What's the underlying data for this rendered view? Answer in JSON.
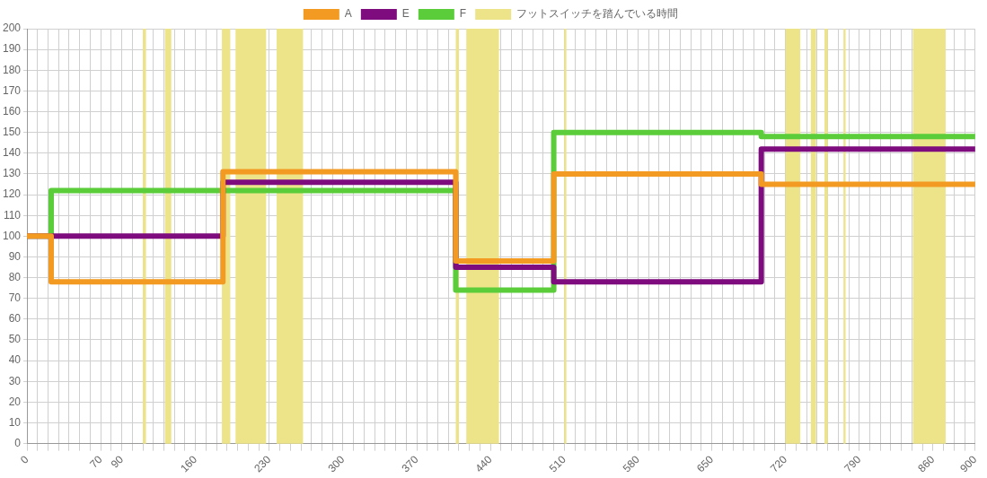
{
  "chart_data": {
    "type": "step",
    "legend": "top",
    "grid": true,
    "marker": "none",
    "line_style": "solid",
    "xlim": [
      0,
      900
    ],
    "ylim": [
      0,
      200
    ],
    "yticks": [
      0,
      10,
      20,
      30,
      40,
      50,
      60,
      70,
      80,
      90,
      100,
      110,
      120,
      130,
      140,
      150,
      160,
      170,
      180,
      190,
      200
    ],
    "xticks": [
      0,
      {
        "value": 10,
        "label": null
      },
      {
        "value": 20,
        "label": null
      },
      {
        "value": 30,
        "label": null
      },
      {
        "value": 40,
        "label": null
      },
      {
        "value": 50,
        "label": null
      },
      {
        "value": 60,
        "label": null
      },
      70,
      {
        "value": 80,
        "label": null
      },
      90,
      {
        "value": 100,
        "label": null
      },
      {
        "value": 110,
        "label": null
      },
      {
        "value": 120,
        "label": null
      },
      {
        "value": 130,
        "label": null
      },
      {
        "value": 140,
        "label": null
      },
      {
        "value": 150,
        "label": null
      },
      160,
      {
        "value": 170,
        "label": null
      },
      {
        "value": 180,
        "label": null
      },
      {
        "value": 190,
        "label": null
      },
      {
        "value": 200,
        "label": null
      },
      {
        "value": 210,
        "label": null
      },
      {
        "value": 220,
        "label": null
      },
      230,
      {
        "value": 240,
        "label": null
      },
      {
        "value": 250,
        "label": null
      },
      {
        "value": 260,
        "label": null
      },
      {
        "value": 270,
        "label": null
      },
      {
        "value": 280,
        "label": null
      },
      {
        "value": 290,
        "label": null
      },
      300,
      {
        "value": 310,
        "label": null
      },
      {
        "value": 320,
        "label": null
      },
      {
        "value": 330,
        "label": null
      },
      {
        "value": 340,
        "label": null
      },
      {
        "value": 350,
        "label": null
      },
      {
        "value": 360,
        "label": null
      },
      370,
      {
        "value": 380,
        "label": null
      },
      {
        "value": 390,
        "label": null
      },
      {
        "value": 400,
        "label": null
      },
      {
        "value": 410,
        "label": null
      },
      {
        "value": 420,
        "label": null
      },
      {
        "value": 430,
        "label": null
      },
      440,
      {
        "value": 450,
        "label": null
      },
      {
        "value": 460,
        "label": null
      },
      {
        "value": 470,
        "label": null
      },
      {
        "value": 480,
        "label": null
      },
      {
        "value": 490,
        "label": null
      },
      {
        "value": 500,
        "label": null
      },
      510,
      {
        "value": 520,
        "label": null
      },
      {
        "value": 530,
        "label": null
      },
      {
        "value": 540,
        "label": null
      },
      {
        "value": 550,
        "label": null
      },
      {
        "value": 560,
        "label": null
      },
      {
        "value": 570,
        "label": null
      },
      580,
      {
        "value": 590,
        "label": null
      },
      {
        "value": 600,
        "label": null
      },
      {
        "value": 610,
        "label": null
      },
      {
        "value": 620,
        "label": null
      },
      {
        "value": 630,
        "label": null
      },
      {
        "value": 640,
        "label": null
      },
      650,
      {
        "value": 660,
        "label": null
      },
      {
        "value": 670,
        "label": null
      },
      {
        "value": 680,
        "label": null
      },
      {
        "value": 690,
        "label": null
      },
      {
        "value": 700,
        "label": null
      },
      {
        "value": 710,
        "label": null
      },
      720,
      {
        "value": 730,
        "label": null
      },
      {
        "value": 740,
        "label": null
      },
      {
        "value": 750,
        "label": null
      },
      {
        "value": 760,
        "label": null
      },
      {
        "value": 770,
        "label": null
      },
      {
        "value": 780,
        "label": null
      },
      790,
      {
        "value": 800,
        "label": null
      },
      {
        "value": 810,
        "label": null
      },
      {
        "value": 820,
        "label": null
      },
      {
        "value": 830,
        "label": null
      },
      {
        "value": 840,
        "label": null
      },
      {
        "value": 850,
        "label": null
      },
      860,
      {
        "value": 870,
        "label": null
      },
      {
        "value": 880,
        "label": null
      },
      {
        "value": 890,
        "label": null
      },
      900
    ],
    "series": [
      {
        "name": "A",
        "color": "#f29a22",
        "x": [
          0,
          23,
          186,
          407,
          500,
          697,
          900
        ],
        "values": [
          100,
          78,
          131,
          88,
          130,
          125,
          125
        ]
      },
      {
        "name": "E",
        "color": "#7e0c7e",
        "x": [
          0,
          23,
          186,
          407,
          500,
          697,
          900
        ],
        "values": [
          100,
          100,
          126,
          85,
          78,
          142,
          142
        ]
      },
      {
        "name": "F",
        "color": "#5bcd3a",
        "x": [
          0,
          23,
          186,
          407,
          500,
          697,
          900
        ],
        "values": [
          100,
          122,
          122,
          74,
          150,
          148,
          148
        ]
      }
    ],
    "bands": [
      {
        "axis": "x",
        "from": 110,
        "to": 113,
        "color": "#ede48a",
        "label": "フットスイッチを踏んでいる時間"
      },
      {
        "axis": "x",
        "from": 131,
        "to": 137,
        "color": "#ede48a"
      },
      {
        "axis": "x",
        "from": 185,
        "to": 193,
        "color": "#ede48a"
      },
      {
        "axis": "x",
        "from": 198,
        "to": 227,
        "color": "#ede48a"
      },
      {
        "axis": "x",
        "from": 237,
        "to": 262,
        "color": "#ede48a"
      },
      {
        "axis": "x",
        "from": 407,
        "to": 410,
        "color": "#ede48a"
      },
      {
        "axis": "x",
        "from": 417,
        "to": 448,
        "color": "#ede48a"
      },
      {
        "axis": "x",
        "from": 510,
        "to": 512,
        "color": "#ede48a"
      },
      {
        "axis": "x",
        "from": 720,
        "to": 734,
        "color": "#ede48a"
      },
      {
        "axis": "x",
        "from": 744,
        "to": 749,
        "color": "#ede48a"
      },
      {
        "axis": "x",
        "from": 757,
        "to": 760,
        "color": "#ede48a"
      },
      {
        "axis": "x",
        "from": 775,
        "to": 777,
        "color": "#ede48a"
      },
      {
        "axis": "x",
        "from": 841,
        "to": 872,
        "color": "#ede48a"
      }
    ]
  }
}
